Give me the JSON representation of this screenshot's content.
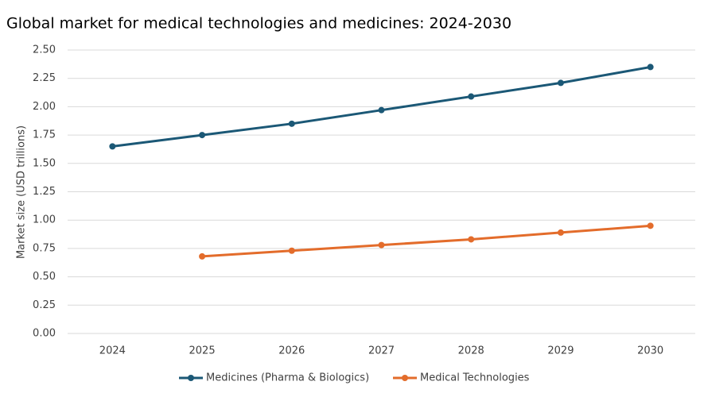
{
  "chart_data": {
    "type": "line",
    "title": "Global market for medical technologies and medicines: 2024-2030",
    "y_label": "Market size (USD trillions)",
    "categories": [
      "2024",
      "2025",
      "2026",
      "2027",
      "2028",
      "2029",
      "2030"
    ],
    "series": [
      {
        "name": "Medicines (Pharma & Biologics)",
        "color": "#1b5876",
        "values": [
          1.65,
          1.75,
          1.85,
          1.97,
          2.09,
          2.21,
          2.35
        ]
      },
      {
        "name": "Medical Technologies",
        "color": "#e36c2b",
        "values": [
          null,
          0.68,
          0.73,
          0.78,
          0.83,
          0.89,
          0.95
        ]
      }
    ],
    "ylim": [
      0,
      2.5
    ],
    "yticks": [
      {
        "value": 0,
        "label": "0.00"
      },
      {
        "value": 0.25,
        "label": "0.25"
      },
      {
        "value": 0.5,
        "label": "0.50"
      },
      {
        "value": 0.75,
        "label": "0.75"
      },
      {
        "value": 1,
        "label": "1.00"
      },
      {
        "value": 1.25,
        "label": "1.25"
      },
      {
        "value": 1.5,
        "label": "1.50"
      },
      {
        "value": 1.75,
        "label": "1.75"
      },
      {
        "value": 2,
        "label": "2.00"
      },
      {
        "value": 2.25,
        "label": "2.25"
      },
      {
        "value": 2.5,
        "label": "2.50"
      }
    ],
    "grid": true,
    "legend": "bottom"
  }
}
